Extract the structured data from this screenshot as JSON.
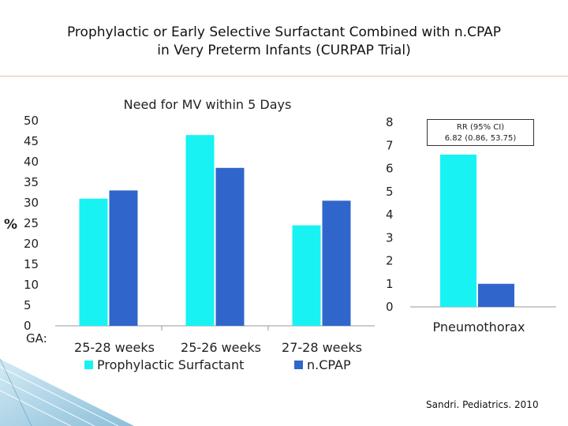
{
  "title_line1": "Prophylactic or Early Selective Surfactant Combined with n.CPAP",
  "title_line2": "in Very Preterm Infants (CURPAP Trial)",
  "citation": "Sandri. Pediatrics. 2010",
  "colors": {
    "prophylactic": "#19f2f2",
    "ncpap": "#3066cc",
    "rule": "#d9c8a0"
  },
  "chart_data": [
    {
      "type": "bar",
      "title": "Need for MV within 5 Days",
      "ylabel": "%",
      "xlabel_prefix": "GA:",
      "ylim": [
        0,
        50
      ],
      "yticks": [
        "0",
        "5",
        "10",
        "15",
        "20",
        "25",
        "30",
        "35",
        "40",
        "45",
        "50"
      ],
      "categories": [
        "25-28 weeks",
        "25-26 weeks",
        "27-28 weeks"
      ],
      "series": [
        {
          "name": "Prophylactic Surfactant",
          "values": [
            31,
            46.5,
            24.5
          ]
        },
        {
          "name": "n.CPAP",
          "values": [
            33,
            38.5,
            30.5
          ]
        }
      ],
      "legend": "bottom"
    },
    {
      "type": "bar",
      "categories": [
        "Pneumothorax"
      ],
      "ylim": [
        0,
        8
      ],
      "yticks": [
        "0",
        "1",
        "2",
        "3",
        "4",
        "5",
        "6",
        "7",
        "8"
      ],
      "series": [
        {
          "values": [
            6.6
          ]
        },
        {
          "values": [
            1.0
          ]
        }
      ],
      "annotation_line1": "RR (95% CI)",
      "annotation_line2": "6.82 (0.86, 53.75)"
    }
  ]
}
